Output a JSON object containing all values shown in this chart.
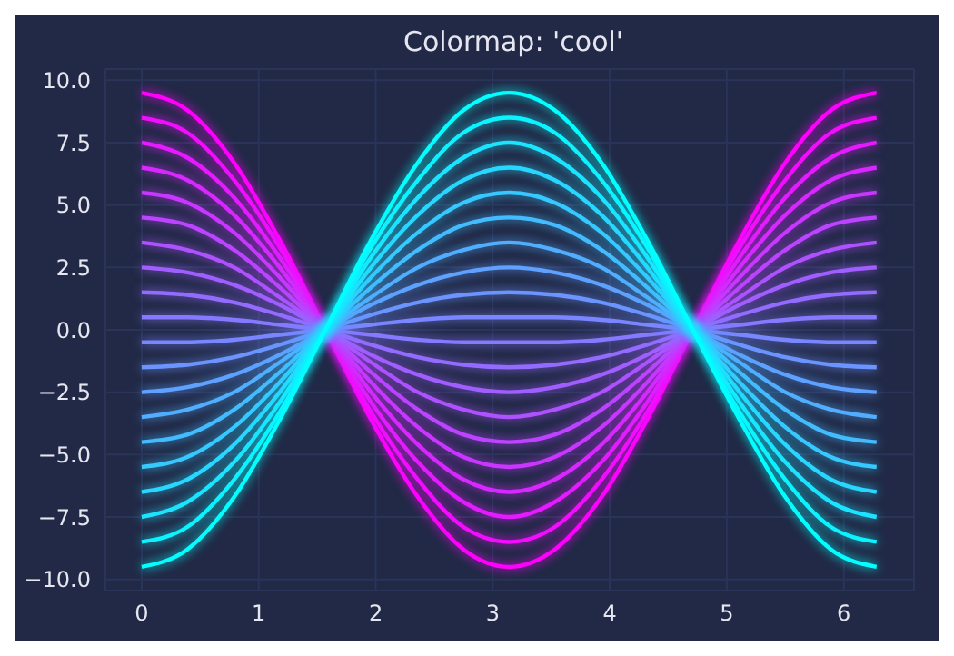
{
  "chart_data": {
    "type": "line",
    "title": "Colormap: 'cool'",
    "x": [
      0,
      0.39,
      0.79,
      1.18,
      1.57,
      1.96,
      2.36,
      2.75,
      3.14,
      3.53,
      3.93,
      4.32,
      4.71,
      5.11,
      5.5,
      5.89,
      6.28
    ],
    "xlim": [
      -0.31,
      6.6
    ],
    "xticks": [
      0,
      1,
      2,
      3,
      4,
      5,
      6
    ],
    "ylim": [
      -10.45,
      10.45
    ],
    "yticks": [
      {
        "value": -10,
        "label": "−10.0"
      },
      {
        "value": -7.5,
        "label": "−7.5"
      },
      {
        "value": -5,
        "label": "−5.0"
      },
      {
        "value": -2.5,
        "label": "−2.5"
      },
      {
        "value": 0,
        "label": "0.0"
      },
      {
        "value": 2.5,
        "label": "2.5"
      },
      {
        "value": 5,
        "label": "5.0"
      },
      {
        "value": 7.5,
        "label": "7.5"
      },
      {
        "value": 10,
        "label": "10.0"
      }
    ],
    "grid": true,
    "legend": false,
    "marker": "none",
    "line_style": "solid",
    "series": [
      {
        "color": "#ff00ff",
        "values": [
          9.5,
          8.8,
          6.7,
          3.6,
          0,
          -3.6,
          -6.7,
          -8.8,
          -9.5,
          -8.8,
          -6.7,
          -3.6,
          0,
          3.6,
          6.7,
          8.8,
          9.5
        ]
      },
      {
        "color": "#f20dff",
        "values": [
          8.5,
          7.9,
          6.0,
          3.3,
          0,
          -3.3,
          -6.0,
          -7.9,
          -8.5,
          -7.9,
          -6.0,
          -3.3,
          0,
          3.3,
          6.0,
          7.9,
          8.5
        ]
      },
      {
        "color": "#e41bff",
        "values": [
          7.5,
          6.9,
          5.3,
          2.9,
          0,
          -2.9,
          -5.3,
          -6.9,
          -7.5,
          -6.9,
          -5.3,
          -2.9,
          0,
          2.9,
          5.3,
          6.9,
          7.5
        ]
      },
      {
        "color": "#d728ff",
        "values": [
          6.5,
          6.0,
          4.6,
          2.5,
          0,
          -2.5,
          -4.6,
          -6.0,
          -6.5,
          -6.0,
          -4.6,
          -2.5,
          0,
          2.5,
          4.6,
          6.0,
          6.5
        ]
      },
      {
        "color": "#c936ff",
        "values": [
          5.5,
          5.1,
          3.9,
          2.1,
          0,
          -2.1,
          -3.9,
          -5.1,
          -5.5,
          -5.1,
          -3.9,
          -2.1,
          0,
          2.1,
          3.9,
          5.1,
          5.5
        ]
      },
      {
        "color": "#bc43ff",
        "values": [
          4.5,
          4.2,
          3.2,
          1.7,
          0,
          -1.7,
          -3.2,
          -4.2,
          -4.5,
          -4.2,
          -3.2,
          -1.7,
          0,
          1.7,
          3.2,
          4.2,
          4.5
        ]
      },
      {
        "color": "#ae51ff",
        "values": [
          3.5,
          3.2,
          2.5,
          1.3,
          0,
          -1.3,
          -2.5,
          -3.2,
          -3.5,
          -3.2,
          -2.5,
          -1.3,
          0,
          1.3,
          2.5,
          3.2,
          3.5
        ]
      },
      {
        "color": "#a15eff",
        "values": [
          2.5,
          2.3,
          1.8,
          1.0,
          0,
          -1.0,
          -1.8,
          -2.3,
          -2.5,
          -2.3,
          -1.8,
          -1.0,
          0,
          1.0,
          1.8,
          2.3,
          2.5
        ]
      },
      {
        "color": "#946bff",
        "values": [
          1.5,
          1.4,
          1.1,
          0.6,
          0,
          -0.6,
          -1.1,
          -1.4,
          -1.5,
          -1.4,
          -1.1,
          -0.6,
          0,
          0.6,
          1.1,
          1.4,
          1.5
        ]
      },
      {
        "color": "#8679ff",
        "values": [
          0.5,
          0.5,
          0.4,
          0.2,
          0,
          -0.2,
          -0.4,
          -0.5,
          -0.5,
          -0.5,
          -0.4,
          -0.2,
          0,
          0.2,
          0.4,
          0.5,
          0.5
        ]
      },
      {
        "color": "#7986ff",
        "values": [
          -0.5,
          -0.5,
          -0.4,
          -0.2,
          0,
          0.2,
          0.4,
          0.5,
          0.5,
          0.5,
          0.4,
          0.2,
          0,
          -0.2,
          -0.4,
          -0.5,
          -0.5
        ]
      },
      {
        "color": "#6b94ff",
        "values": [
          -1.5,
          -1.4,
          -1.1,
          -0.6,
          0,
          0.6,
          1.1,
          1.4,
          1.5,
          1.4,
          1.1,
          0.6,
          0,
          -0.6,
          -1.1,
          -1.4,
          -1.5
        ]
      },
      {
        "color": "#5ea1ff",
        "values": [
          -2.5,
          -2.3,
          -1.8,
          -1.0,
          0,
          1.0,
          1.8,
          2.3,
          2.5,
          2.3,
          1.8,
          1.0,
          0,
          -1.0,
          -1.8,
          -2.3,
          -2.5
        ]
      },
      {
        "color": "#51aeff",
        "values": [
          -3.5,
          -3.2,
          -2.5,
          -1.3,
          0,
          1.3,
          2.5,
          3.2,
          3.5,
          3.2,
          2.5,
          1.3,
          0,
          -1.3,
          -2.5,
          -3.2,
          -3.5
        ]
      },
      {
        "color": "#43bcff",
        "values": [
          -4.5,
          -4.2,
          -3.2,
          -1.7,
          0,
          1.7,
          3.2,
          4.2,
          4.5,
          4.2,
          3.2,
          1.7,
          0,
          -1.7,
          -3.2,
          -4.2,
          -4.5
        ]
      },
      {
        "color": "#36c9ff",
        "values": [
          -5.5,
          -5.1,
          -3.9,
          -2.1,
          0,
          2.1,
          3.9,
          5.1,
          5.5,
          5.1,
          3.9,
          2.1,
          0,
          -2.1,
          -3.9,
          -5.1,
          -5.5
        ]
      },
      {
        "color": "#28d7ff",
        "values": [
          -6.5,
          -6.0,
          -4.6,
          -2.5,
          0,
          2.5,
          4.6,
          6.0,
          6.5,
          6.0,
          4.6,
          2.5,
          0,
          -2.5,
          -4.6,
          -6.0,
          -6.5
        ]
      },
      {
        "color": "#1be4ff",
        "values": [
          -7.5,
          -6.9,
          -5.3,
          -2.9,
          0,
          2.9,
          5.3,
          6.9,
          7.5,
          6.9,
          5.3,
          2.9,
          0,
          -2.9,
          -5.3,
          -6.9,
          -7.5
        ]
      },
      {
        "color": "#0df2ff",
        "values": [
          -8.5,
          -7.9,
          -6.0,
          -3.3,
          0,
          3.3,
          6.0,
          7.9,
          8.5,
          7.9,
          6.0,
          3.3,
          0,
          -3.3,
          -6.0,
          -7.9,
          -8.5
        ]
      },
      {
        "color": "#00ffff",
        "values": [
          -9.5,
          -8.8,
          -6.7,
          -3.6,
          0,
          3.6,
          6.7,
          8.8,
          9.5,
          8.8,
          6.7,
          3.6,
          0,
          -3.6,
          -6.7,
          -8.8,
          -9.5
        ]
      }
    ]
  }
}
